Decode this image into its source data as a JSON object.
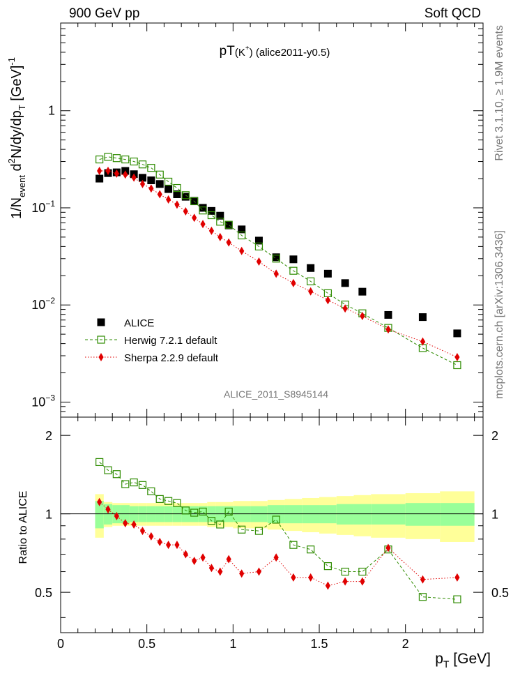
{
  "header": {
    "left": "900 GeV pp",
    "right": "Soft QCD",
    "plot_title_main": "pT",
    "plot_title_particle": "(K",
    "plot_title_sup": "+",
    "plot_title_rest": ") (alice2011-y0.5)"
  },
  "side_labels": {
    "rivet": "Rivet 3.1.10, ≥ 1.9M events",
    "mcplots": "mcplots.cern.ch [arXiv:1306.3436]"
  },
  "watermark": "ALICE_2011_S8945144",
  "upper_ylabel": {
    "a": "1/N",
    "a_sub": "event",
    "b": " d",
    "b_sup": "2",
    "c": "N/dy/dp",
    "c_sub": "T",
    "d": " [GeV]",
    "d_sup": "-1"
  },
  "lower_ylabel": "Ratio to ALICE",
  "xlabel": {
    "main": "p",
    "sub": "T",
    "unit": " [GeV]"
  },
  "colors": {
    "alice": "#000000",
    "herwig": "#2e8b00",
    "sherpa": "#e00000",
    "band_outer": "#ffff99",
    "band_inner": "#99ff99"
  },
  "chart_data": [
    {
      "type": "scatter",
      "panel": "main",
      "yscale": "log",
      "xlim": [
        0,
        2.45
      ],
      "ylim": [
        0.0007,
        8
      ],
      "xticks": [
        0,
        0.5,
        1,
        1.5,
        2
      ],
      "yticks": [
        {
          "value": 0.001,
          "label": "10",
          "sup": "−3"
        },
        {
          "value": 0.01,
          "label": "10",
          "sup": "−2"
        },
        {
          "value": 0.1,
          "label": "10",
          "sup": "−1"
        },
        {
          "value": 1,
          "label": "1",
          "sup": ""
        }
      ],
      "legend_position": "bottom-left",
      "x": [
        0.225,
        0.275,
        0.325,
        0.375,
        0.425,
        0.475,
        0.525,
        0.575,
        0.625,
        0.675,
        0.725,
        0.775,
        0.825,
        0.875,
        0.925,
        0.975,
        1.05,
        1.15,
        1.25,
        1.35,
        1.45,
        1.55,
        1.65,
        1.75,
        1.9,
        2.1,
        2.3
      ],
      "series": [
        {
          "name": "ALICE",
          "marker": "filled-square",
          "values": [
            0.2,
            0.228,
            0.232,
            0.24,
            0.222,
            0.204,
            0.192,
            0.176,
            0.156,
            0.138,
            0.13,
            0.118,
            0.1,
            0.093,
            0.083,
            0.066,
            0.06,
            0.046,
            0.031,
            0.0295,
            0.024,
            0.021,
            0.0168,
            0.0137,
            0.0079,
            0.0075,
            0.0051
          ]
        },
        {
          "name": "Herwig 7.2.1 default",
          "marker": "open-square",
          "line": "dashed",
          "values": [
            0.315,
            0.335,
            0.325,
            0.315,
            0.3,
            0.28,
            0.258,
            0.22,
            0.186,
            0.16,
            0.135,
            0.117,
            0.094,
            0.084,
            0.072,
            0.067,
            0.052,
            0.04,
            0.03,
            0.0225,
            0.0175,
            0.0132,
            0.0101,
            0.0082,
            0.0058,
            0.0036,
            0.0024
          ]
        },
        {
          "name": "Sherpa 2.2.9 default",
          "marker": "filled-diamond",
          "line": "dotted",
          "values": [
            0.24,
            0.24,
            0.225,
            0.22,
            0.205,
            0.176,
            0.158,
            0.138,
            0.122,
            0.108,
            0.092,
            0.079,
            0.068,
            0.058,
            0.05,
            0.044,
            0.036,
            0.028,
            0.021,
            0.0168,
            0.0138,
            0.0112,
            0.0092,
            0.0077,
            0.0056,
            0.0042,
            0.0029
          ]
        }
      ]
    },
    {
      "type": "scatter",
      "panel": "ratio",
      "xlim": [
        0,
        2.45
      ],
      "ylim": [
        0.35,
        2.35
      ],
      "xticks": [
        0,
        0.5,
        1,
        1.5,
        2
      ],
      "yticks": [
        0.5,
        1,
        2
      ],
      "reference_line": 1,
      "bands": {
        "edges": [
          0.2,
          0.25,
          0.3,
          0.35,
          0.4,
          0.45,
          0.5,
          0.55,
          0.6,
          0.65,
          0.7,
          0.75,
          0.8,
          0.85,
          0.9,
          0.95,
          1.0,
          1.1,
          1.2,
          1.3,
          1.4,
          1.5,
          1.6,
          1.7,
          1.8,
          2.0,
          2.2,
          2.4
        ],
        "outer": [
          0.19,
          0.11,
          0.1,
          0.1,
          0.1,
          0.1,
          0.1,
          0.1,
          0.1,
          0.1,
          0.1,
          0.1,
          0.1,
          0.11,
          0.11,
          0.11,
          0.12,
          0.12,
          0.13,
          0.14,
          0.15,
          0.16,
          0.17,
          0.18,
          0.19,
          0.2,
          0.22
        ],
        "inner": [
          0.12,
          0.09,
          0.08,
          0.08,
          0.07,
          0.07,
          0.07,
          0.07,
          0.07,
          0.07,
          0.07,
          0.07,
          0.07,
          0.07,
          0.07,
          0.07,
          0.07,
          0.07,
          0.08,
          0.08,
          0.08,
          0.08,
          0.09,
          0.09,
          0.09,
          0.1,
          0.1
        ]
      },
      "x": [
        0.225,
        0.275,
        0.325,
        0.375,
        0.425,
        0.475,
        0.525,
        0.575,
        0.625,
        0.675,
        0.725,
        0.775,
        0.825,
        0.875,
        0.925,
        0.975,
        1.05,
        1.15,
        1.25,
        1.35,
        1.45,
        1.55,
        1.65,
        1.75,
        1.9,
        2.1,
        2.3
      ],
      "series": [
        {
          "name": "Herwig 7.2.1 default",
          "marker": "open-square",
          "line": "dashed",
          "values": [
            1.58,
            1.47,
            1.42,
            1.3,
            1.32,
            1.29,
            1.22,
            1.14,
            1.12,
            1.1,
            1.03,
            1.01,
            1.02,
            0.94,
            0.91,
            1.02,
            0.87,
            0.86,
            0.95,
            0.76,
            0.73,
            0.63,
            0.6,
            0.6,
            0.73,
            0.48,
            0.47
          ]
        },
        {
          "name": "Sherpa 2.2.9 default",
          "marker": "filled-diamond",
          "line": "dotted",
          "values": [
            1.11,
            1.04,
            0.98,
            0.92,
            0.91,
            0.86,
            0.82,
            0.78,
            0.76,
            0.76,
            0.7,
            0.66,
            0.68,
            0.62,
            0.6,
            0.67,
            0.59,
            0.6,
            0.68,
            0.57,
            0.57,
            0.53,
            0.55,
            0.55,
            0.74,
            0.56,
            0.57
          ]
        }
      ]
    }
  ]
}
